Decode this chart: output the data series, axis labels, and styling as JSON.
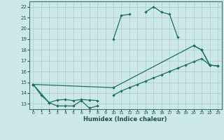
{
  "xlabel": "Humidex (Indice chaleur)",
  "background_color": "#cce8e8",
  "grid_color": "#aacccc",
  "line_color": "#1a7060",
  "xlim": [
    -0.5,
    23.5
  ],
  "ylim": [
    12.5,
    22.5
  ],
  "xticks": [
    0,
    1,
    2,
    3,
    4,
    5,
    6,
    7,
    8,
    9,
    10,
    11,
    12,
    13,
    14,
    15,
    16,
    17,
    18,
    19,
    20,
    21,
    22,
    23
  ],
  "yticks": [
    13,
    14,
    15,
    16,
    17,
    18,
    19,
    20,
    21,
    22
  ],
  "curve1_segments": [
    [
      [
        0,
        14.8
      ],
      [
        1,
        13.8
      ],
      [
        2,
        13.1
      ],
      [
        3,
        12.8
      ],
      [
        4,
        12.8
      ],
      [
        5,
        12.8
      ],
      [
        6,
        13.3
      ],
      [
        7,
        12.6
      ],
      [
        8,
        12.8
      ]
    ],
    [
      [
        10,
        19.0
      ],
      [
        11,
        21.2
      ],
      [
        12,
        21.3
      ]
    ],
    [
      [
        14,
        21.5
      ],
      [
        15,
        22.0
      ],
      [
        16,
        21.5
      ],
      [
        17,
        21.3
      ],
      [
        18,
        19.2
      ]
    ],
    [
      [
        20,
        18.4
      ],
      [
        21,
        18.0
      ],
      [
        22,
        16.6
      ]
    ]
  ],
  "curve2_segments": [
    [
      [
        0,
        14.8
      ],
      [
        2,
        13.1
      ],
      [
        3,
        13.35
      ],
      [
        4,
        13.4
      ],
      [
        5,
        13.3
      ],
      [
        6,
        13.4
      ],
      [
        7,
        13.35
      ],
      [
        8,
        13.3
      ]
    ],
    [
      [
        10,
        13.8
      ],
      [
        11,
        14.2
      ],
      [
        12,
        14.5
      ],
      [
        13,
        14.8
      ],
      [
        14,
        15.1
      ],
      [
        15,
        15.4
      ],
      [
        16,
        15.7
      ],
      [
        17,
        16.0
      ],
      [
        18,
        16.3
      ],
      [
        19,
        16.6
      ],
      [
        20,
        16.9
      ],
      [
        21,
        17.2
      ],
      [
        22,
        16.6
      ],
      [
        23,
        16.5
      ]
    ]
  ],
  "curve3_segments": [
    [
      [
        0,
        14.8
      ],
      [
        10,
        14.5
      ],
      [
        20,
        18.4
      ],
      [
        21,
        18.0
      ],
      [
        22,
        16.6
      ],
      [
        23,
        16.5
      ]
    ]
  ]
}
